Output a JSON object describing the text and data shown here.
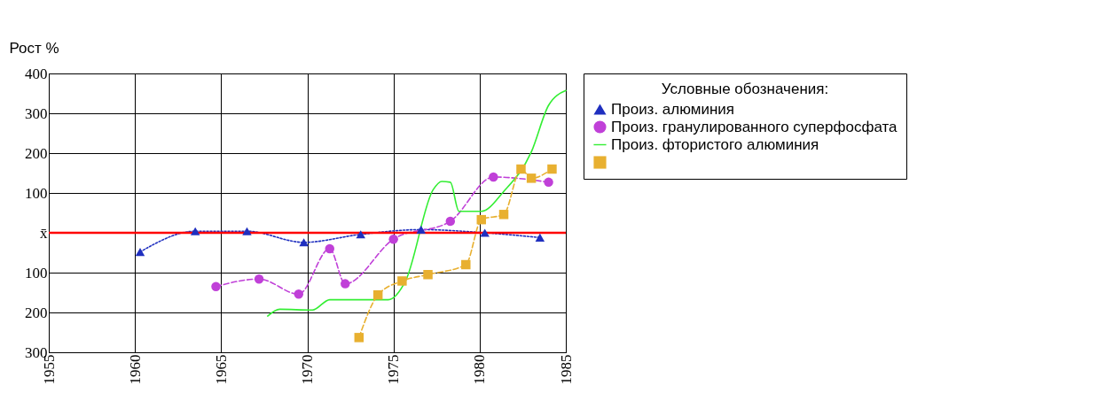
{
  "chart_data": {
    "type": "line",
    "ylabel": "Рост %",
    "legend_title": "Условные обозначения:",
    "legend": "right",
    "grid": true,
    "xlim": [
      1955,
      1985
    ],
    "xticks": [
      {
        "value": 1955,
        "label": "1955"
      },
      {
        "value": 1960,
        "label": "1960"
      },
      {
        "value": 1965,
        "label": "1965"
      },
      {
        "value": 1970,
        "label": "1970"
      },
      {
        "value": 1975,
        "label": "1975"
      },
      {
        "value": 1980,
        "label": "1980"
      },
      {
        "value": 1985,
        "label": "1985"
      }
    ],
    "ylim": [
      -300,
      400
    ],
    "yticks": [
      400,
      300,
      200,
      100,
      {
        "value": 0,
        "label": "x̄"
      },
      {
        "value": -100,
        "label": "100"
      },
      {
        "value": -200,
        "label": "200"
      },
      {
        "value": -300,
        "label": "300"
      }
    ],
    "ref_lines": [
      {
        "axis": "y",
        "value": 0,
        "color": "#ff0000"
      }
    ],
    "series": [
      {
        "name": "Произ. алюминия",
        "color": "#1f2fbf",
        "marker": "triangle",
        "line_style": "dotted",
        "x": [
          1960.3,
          1963.5,
          1966.5,
          1969.8,
          1973.1,
          1976.6,
          1980.3,
          1983.5
        ],
        "values": [
          -48,
          4,
          4,
          -24,
          -4,
          8,
          0,
          -12
        ]
      },
      {
        "name": "Произ. гранулированного суперфосфата",
        "color": "#c040d8",
        "marker": "circle",
        "line_style": "dashed",
        "x": [
          1964.7,
          1967.2,
          1969.5,
          1971.3,
          1972.2,
          1975,
          1978.3,
          1980.8,
          1984
        ],
        "values": [
          -135,
          -116,
          -154,
          -40,
          -128,
          -16,
          29,
          140,
          127
        ]
      },
      {
        "name": "Произ. фтористого алюминия",
        "color": "#33ee33",
        "marker": "none",
        "line_style": "solid",
        "x": [
          1967.7,
          1968.4,
          1970.3,
          1971.3,
          1974.7,
          1975.7,
          1977.3,
          1977.8,
          1978.3,
          1978.8,
          1980.1,
          1981.4,
          1983,
          1984,
          1985
        ],
        "values": [
          -209,
          -192,
          -194,
          -168,
          -168,
          -121,
          108,
          129,
          127,
          54,
          54,
          104,
          203,
          320,
          357
        ]
      },
      {
        "color": "#e8b030",
        "marker": "square",
        "line_style": "dashed",
        "x": [
          1973,
          1974.1,
          1975.5,
          1977,
          1979.2,
          1980.1,
          1981.4,
          1982.4,
          1983,
          1984.2
        ],
        "values": [
          -263,
          -156,
          -121,
          -105,
          -80,
          33,
          46,
          160,
          137,
          160
        ]
      }
    ]
  }
}
